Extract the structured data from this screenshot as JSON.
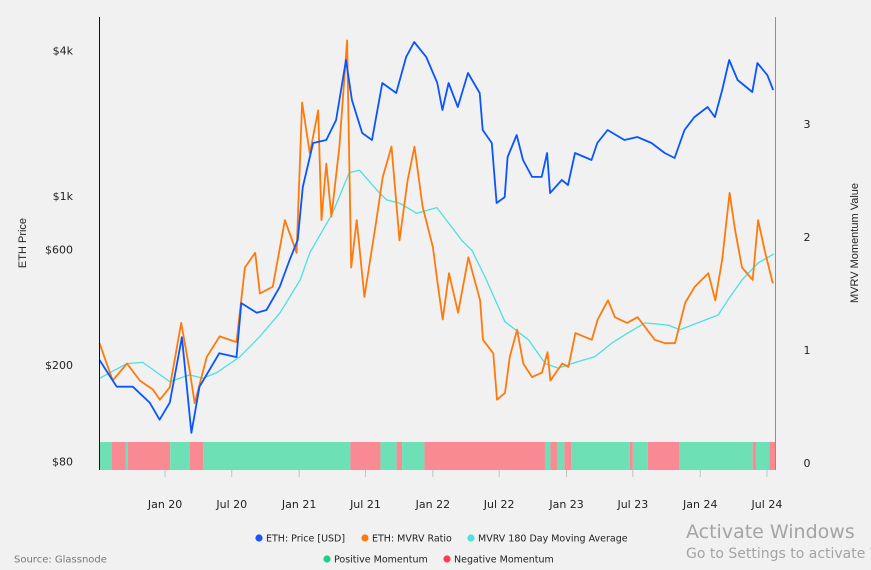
{
  "chart_data": {
    "type": "line",
    "source": "Source: Glassnode",
    "x_ticks": [
      "Jan 20",
      "Jul 20",
      "Jan 21",
      "Jul 21",
      "Jan 22",
      "Jul 22",
      "Jan 23",
      "Jul 23",
      "Jan 24",
      "Jul 24"
    ],
    "x_tick_dates": [
      "2020-01-01",
      "2020-07-01",
      "2021-01-01",
      "2021-07-01",
      "2022-01-01",
      "2022-07-01",
      "2023-01-01",
      "2023-07-01",
      "2024-01-01",
      "2024-07-01"
    ],
    "xlim": [
      "2019-07-06",
      "2024-07-23"
    ],
    "y_left": {
      "label": "ETH Price",
      "scale": "log",
      "ticks": [
        "$4k",
        "$1k",
        "$600",
        "$200",
        "$80"
      ],
      "tick_values": [
        4000,
        1000,
        600,
        200,
        80
      ],
      "range": [
        80,
        4000
      ]
    },
    "y_right": {
      "label": "MVRV Momentum Value",
      "scale": "linear",
      "ticks": [
        "3",
        "2",
        "1",
        "0"
      ],
      "tick_values": [
        3,
        2,
        1,
        0
      ],
      "range": [
        0,
        3.9
      ]
    },
    "grid": false,
    "legend_position": "bottom",
    "legend": [
      {
        "label": "ETH: Price [USD]",
        "color": "#1a56ff"
      },
      {
        "label": "ETH: MVRV Ratio",
        "color": "#ff7a12"
      },
      {
        "label": "MVRV 180 Day Moving Average",
        "color": "#4fdfe0"
      },
      {
        "label": "Positive Momentum",
        "color": "#1fcf8a"
      },
      {
        "label": "Negative Momentum",
        "color": "#ff3d4f"
      }
    ],
    "series": [
      {
        "name": "ETH: Price [USD]",
        "axis": "left",
        "color": "#0a55ff",
        "points": [
          [
            "2019-07-06",
            210
          ],
          [
            "2019-08-22",
            163
          ],
          [
            "2019-10-05",
            163
          ],
          [
            "2019-11-20",
            140
          ],
          [
            "2019-12-17",
            119
          ],
          [
            "2020-01-14",
            140
          ],
          [
            "2020-02-16",
            261
          ],
          [
            "2020-03-13",
            105
          ],
          [
            "2020-04-04",
            163
          ],
          [
            "2020-05-01",
            191
          ],
          [
            "2020-05-28",
            224
          ],
          [
            "2020-07-14",
            216
          ],
          [
            "2020-07-27",
            361
          ],
          [
            "2020-09-07",
            329
          ],
          [
            "2020-10-04",
            338
          ],
          [
            "2020-11-09",
            421
          ],
          [
            "2020-12-06",
            544
          ],
          [
            "2020-12-28",
            658
          ],
          [
            "2021-01-11",
            1089
          ],
          [
            "2021-02-08",
            1656
          ],
          [
            "2021-03-16",
            1704
          ],
          [
            "2021-04-12",
            2061
          ],
          [
            "2021-05-09",
            3648
          ],
          [
            "2021-05-25",
            2493
          ],
          [
            "2021-06-22",
            1821
          ],
          [
            "2021-07-19",
            1704
          ],
          [
            "2021-08-16",
            2930
          ],
          [
            "2021-09-23",
            2664
          ],
          [
            "2021-10-20",
            3750
          ],
          [
            "2021-11-11",
            4330
          ],
          [
            "2021-12-14",
            3750
          ],
          [
            "2022-01-13",
            2930
          ],
          [
            "2022-01-27",
            2266
          ],
          [
            "2022-02-13",
            2930
          ],
          [
            "2022-03-10",
            2333
          ],
          [
            "2022-04-07",
            3222
          ],
          [
            "2022-05-09",
            2664
          ],
          [
            "2022-05-17",
            1874
          ],
          [
            "2022-06-11",
            1656
          ],
          [
            "2022-06-24",
            936
          ],
          [
            "2022-07-16",
            990
          ],
          [
            "2022-07-24",
            1449
          ],
          [
            "2022-08-18",
            1787
          ],
          [
            "2022-09-04",
            1409
          ],
          [
            "2022-09-29",
            1199
          ],
          [
            "2022-10-25",
            1199
          ],
          [
            "2022-11-09",
            1506
          ],
          [
            "2022-11-17",
            1029
          ],
          [
            "2022-12-19",
            1164
          ],
          [
            "2023-01-05",
            1110
          ],
          [
            "2023-01-24",
            1506
          ],
          [
            "2023-03-10",
            1409
          ],
          [
            "2023-03-26",
            1656
          ],
          [
            "2023-04-23",
            1874
          ],
          [
            "2023-06-08",
            1704
          ],
          [
            "2023-07-13",
            1753
          ],
          [
            "2023-08-21",
            1656
          ],
          [
            "2023-09-26",
            1506
          ],
          [
            "2023-10-23",
            1436
          ],
          [
            "2023-11-19",
            1874
          ],
          [
            "2023-12-16",
            2119
          ],
          [
            "2024-01-21",
            2333
          ],
          [
            "2024-02-10",
            2119
          ],
          [
            "2024-03-01",
            2741
          ],
          [
            "2024-03-20",
            3648
          ],
          [
            "2024-04-12",
            3015
          ],
          [
            "2024-05-22",
            2690
          ],
          [
            "2024-06-05",
            3545
          ],
          [
            "2024-07-02",
            3160
          ],
          [
            "2024-07-18",
            2741
          ]
        ]
      },
      {
        "name": "ETH: MVRV Ratio",
        "axis": "right",
        "color": "#ff7a0a",
        "points": [
          [
            "2019-07-06",
            1.06
          ],
          [
            "2019-08-11",
            0.73
          ],
          [
            "2019-09-19",
            0.88
          ],
          [
            "2019-10-24",
            0.73
          ],
          [
            "2019-11-29",
            0.65
          ],
          [
            "2019-12-18",
            0.56
          ],
          [
            "2020-01-14",
            0.67
          ],
          [
            "2020-02-14",
            1.24
          ],
          [
            "2020-03-08",
            0.82
          ],
          [
            "2020-03-22",
            0.53
          ],
          [
            "2020-04-24",
            0.94
          ],
          [
            "2020-05-29",
            1.12
          ],
          [
            "2020-07-14",
            1.07
          ],
          [
            "2020-08-06",
            1.73
          ],
          [
            "2020-09-03",
            1.86
          ],
          [
            "2020-09-16",
            1.5
          ],
          [
            "2020-10-21",
            1.56
          ],
          [
            "2020-11-23",
            2.15
          ],
          [
            "2020-12-25",
            1.86
          ],
          [
            "2021-01-09",
            3.19
          ],
          [
            "2021-01-30",
            2.74
          ],
          [
            "2021-02-22",
            3.12
          ],
          [
            "2021-03-03",
            2.15
          ],
          [
            "2021-03-16",
            2.65
          ],
          [
            "2021-03-30",
            2.18
          ],
          [
            "2021-04-21",
            2.8
          ],
          [
            "2021-05-12",
            3.74
          ],
          [
            "2021-05-23",
            1.73
          ],
          [
            "2021-06-07",
            2.15
          ],
          [
            "2021-06-28",
            1.47
          ],
          [
            "2021-07-31",
            2.15
          ],
          [
            "2021-08-17",
            2.53
          ],
          [
            "2021-09-10",
            2.8
          ],
          [
            "2021-10-02",
            1.97
          ],
          [
            "2021-10-24",
            2.5
          ],
          [
            "2021-11-12",
            2.8
          ],
          [
            "2021-12-04",
            2.27
          ],
          [
            "2022-01-01",
            1.91
          ],
          [
            "2022-01-14",
            1.59
          ],
          [
            "2022-01-28",
            1.27
          ],
          [
            "2022-02-14",
            1.68
          ],
          [
            "2022-03-11",
            1.33
          ],
          [
            "2022-04-08",
            1.82
          ],
          [
            "2022-05-10",
            1.44
          ],
          [
            "2022-05-18",
            1.09
          ],
          [
            "2022-06-15",
            0.97
          ],
          [
            "2022-06-25",
            0.56
          ],
          [
            "2022-07-17",
            0.62
          ],
          [
            "2022-07-30",
            0.94
          ],
          [
            "2022-08-19",
            1.18
          ],
          [
            "2022-09-05",
            0.88
          ],
          [
            "2022-09-29",
            0.76
          ],
          [
            "2022-10-26",
            0.8
          ],
          [
            "2022-11-10",
            0.98
          ],
          [
            "2022-11-18",
            0.73
          ],
          [
            "2022-12-20",
            0.88
          ],
          [
            "2023-01-06",
            0.85
          ],
          [
            "2023-01-25",
            1.15
          ],
          [
            "2023-03-11",
            1.09
          ],
          [
            "2023-03-27",
            1.27
          ],
          [
            "2023-04-24",
            1.44
          ],
          [
            "2023-05-13",
            1.29
          ],
          [
            "2023-06-15",
            1.24
          ],
          [
            "2023-07-14",
            1.29
          ],
          [
            "2023-08-30",
            1.09
          ],
          [
            "2023-09-27",
            1.06
          ],
          [
            "2023-10-24",
            1.06
          ],
          [
            "2023-11-21",
            1.42
          ],
          [
            "2023-12-17",
            1.56
          ],
          [
            "2024-01-23",
            1.68
          ],
          [
            "2024-02-11",
            1.44
          ],
          [
            "2024-03-01",
            1.8
          ],
          [
            "2024-03-21",
            2.39
          ],
          [
            "2024-04-05",
            2.06
          ],
          [
            "2024-04-24",
            1.73
          ],
          [
            "2024-05-23",
            1.62
          ],
          [
            "2024-06-07",
            2.15
          ],
          [
            "2024-06-25",
            1.88
          ],
          [
            "2024-07-17",
            1.59
          ]
        ]
      },
      {
        "name": "MVRV 180 Day Moving Average",
        "axis": "right",
        "color": "#4fdfe0",
        "points": [
          [
            "2019-07-06",
            0.75
          ],
          [
            "2019-09-19",
            0.88
          ],
          [
            "2019-11-01",
            0.89
          ],
          [
            "2020-01-14",
            0.72
          ],
          [
            "2020-03-08",
            0.78
          ],
          [
            "2020-04-13",
            0.75
          ],
          [
            "2020-05-21",
            0.8
          ],
          [
            "2020-07-23",
            0.94
          ],
          [
            "2020-09-16",
            1.12
          ],
          [
            "2020-11-10",
            1.33
          ],
          [
            "2021-01-04",
            1.62
          ],
          [
            "2021-01-30",
            1.86
          ],
          [
            "2021-04-02",
            2.21
          ],
          [
            "2021-05-18",
            2.57
          ],
          [
            "2021-06-15",
            2.59
          ],
          [
            "2021-07-31",
            2.42
          ],
          [
            "2021-08-27",
            2.33
          ],
          [
            "2021-10-02",
            2.3
          ],
          [
            "2021-11-18",
            2.21
          ],
          [
            "2022-01-12",
            2.26
          ],
          [
            "2022-03-21",
            1.97
          ],
          [
            "2022-04-18",
            1.88
          ],
          [
            "2022-05-23",
            1.65
          ],
          [
            "2022-07-17",
            1.25
          ],
          [
            "2022-09-19",
            1.09
          ],
          [
            "2022-11-04",
            0.88
          ],
          [
            "2022-12-09",
            0.84
          ],
          [
            "2023-01-25",
            0.89
          ],
          [
            "2023-03-19",
            0.94
          ],
          [
            "2023-05-04",
            1.06
          ],
          [
            "2023-06-17",
            1.15
          ],
          [
            "2023-08-03",
            1.24
          ],
          [
            "2023-10-05",
            1.22
          ],
          [
            "2023-11-07",
            1.18
          ],
          [
            "2023-12-25",
            1.24
          ],
          [
            "2024-02-19",
            1.31
          ],
          [
            "2024-03-16",
            1.44
          ],
          [
            "2024-04-24",
            1.62
          ],
          [
            "2024-06-07",
            1.77
          ],
          [
            "2024-07-20",
            1.85
          ]
        ]
      }
    ],
    "momentum": [
      [
        "2019-07-06",
        "2019-08-08",
        "positive"
      ],
      [
        "2019-08-08",
        "2019-09-16",
        "negative"
      ],
      [
        "2019-09-16",
        "2019-09-21",
        "positive"
      ],
      [
        "2019-09-21",
        "2020-01-15",
        "negative"
      ],
      [
        "2020-01-15",
        "2020-03-08",
        "positive"
      ],
      [
        "2020-03-08",
        "2020-04-14",
        "negative"
      ],
      [
        "2020-04-14",
        "2021-05-21",
        "positive"
      ],
      [
        "2021-05-21",
        "2021-08-11",
        "negative"
      ],
      [
        "2021-08-11",
        "2021-09-24",
        "positive"
      ],
      [
        "2021-09-24",
        "2021-10-09",
        "negative"
      ],
      [
        "2021-10-09",
        "2021-12-09",
        "positive"
      ],
      [
        "2021-12-09",
        "2022-11-03",
        "negative"
      ],
      [
        "2022-11-03",
        "2022-11-18",
        "positive"
      ],
      [
        "2022-11-18",
        "2022-12-07",
        "negative"
      ],
      [
        "2022-12-07",
        "2022-12-26",
        "positive"
      ],
      [
        "2022-12-26",
        "2023-01-14",
        "negative"
      ],
      [
        "2023-01-14",
        "2023-06-23",
        "positive"
      ],
      [
        "2023-06-23",
        "2023-07-01",
        "negative"
      ],
      [
        "2023-07-01",
        "2023-08-11",
        "positive"
      ],
      [
        "2023-08-11",
        "2023-11-04",
        "negative"
      ],
      [
        "2023-11-04",
        "2024-05-23",
        "positive"
      ],
      [
        "2024-05-23",
        "2024-06-01",
        "negative"
      ],
      [
        "2024-06-01",
        "2024-07-08",
        "positive"
      ],
      [
        "2024-07-08",
        "2024-07-23",
        "negative"
      ]
    ],
    "momentum_colors": {
      "positive": "#6ee0b6",
      "negative": "#f98a94"
    }
  },
  "watermark": {
    "line1": "Activate Windows",
    "line2": "Go to Settings to activate W"
  }
}
